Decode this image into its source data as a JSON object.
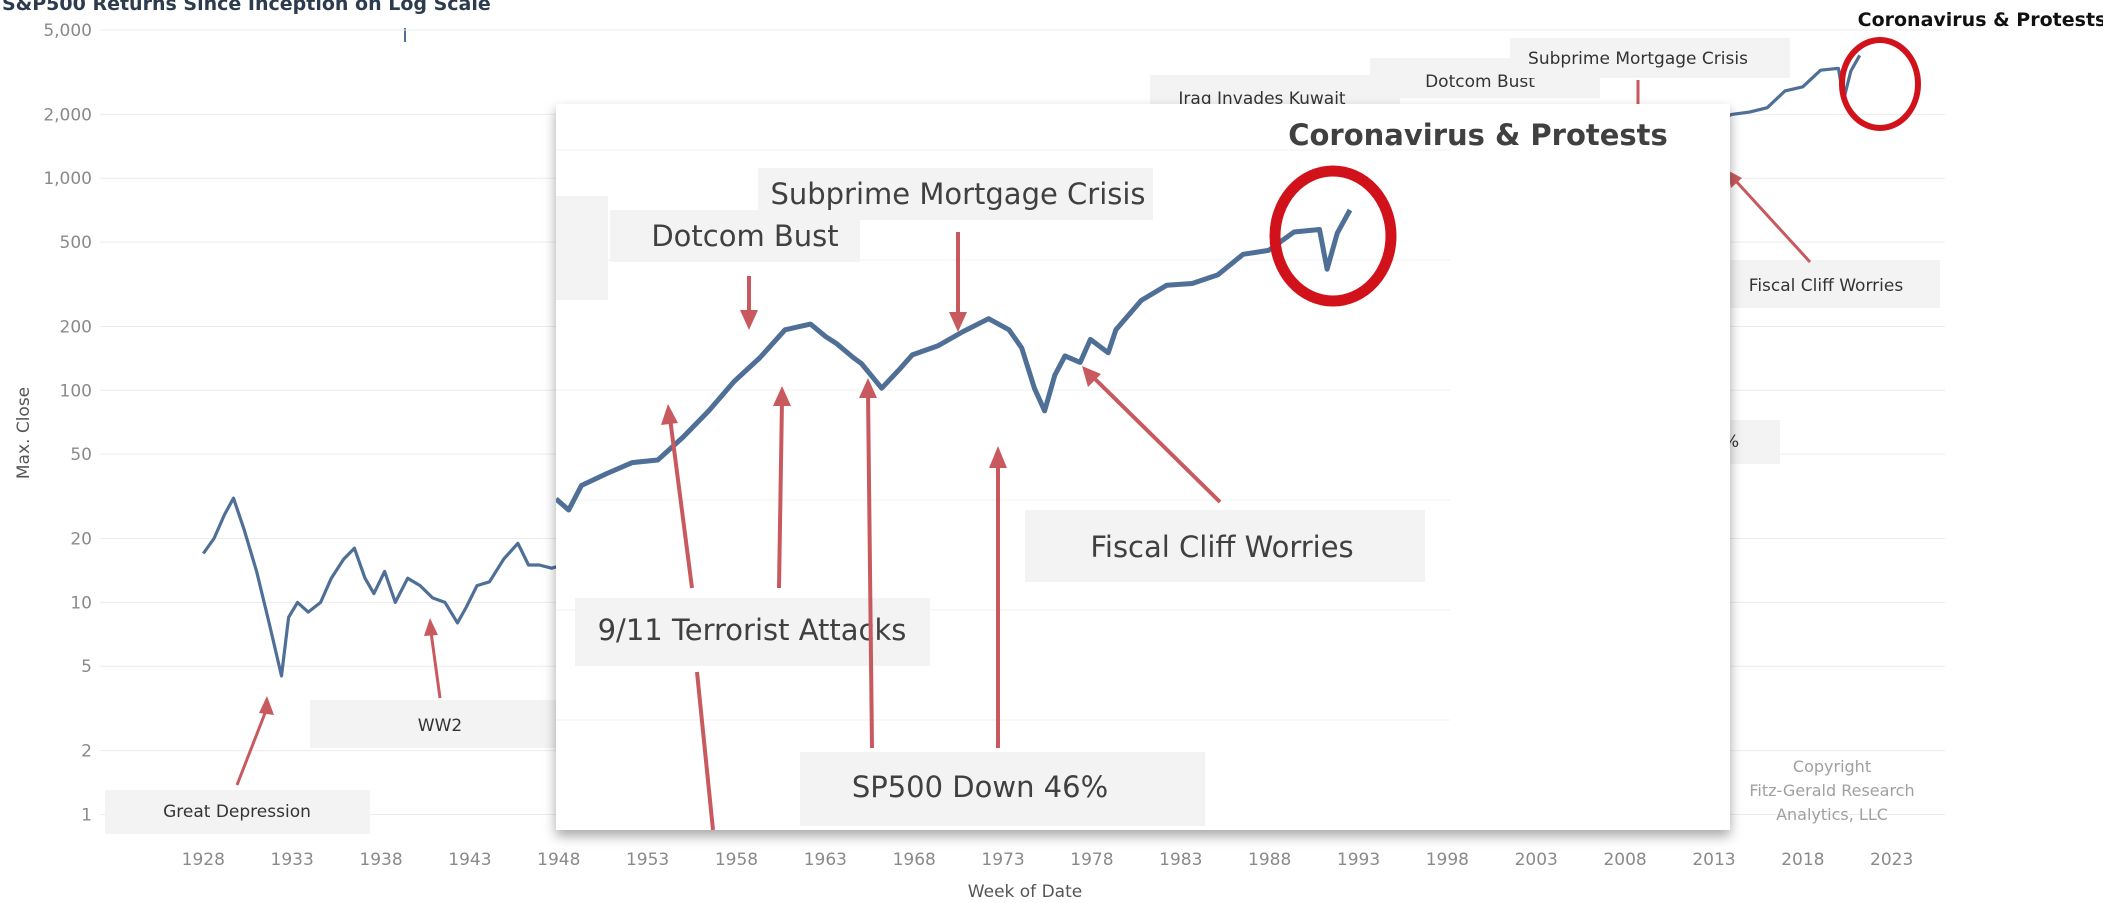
{
  "chart_data": [
    {
      "type": "line",
      "title": "S&P500 Returns Since Inception on Log Scale",
      "xlabel": "Week of Date",
      "ylabel": "Max. Close",
      "yscale": "log",
      "ylim": [
        0.8,
        5000
      ],
      "xlim": [
        1925,
        2026
      ],
      "y_ticks": [
        "5,000",
        "2,000",
        "1,000",
        "500",
        "200",
        "100",
        "50",
        "20",
        "10",
        "5",
        "2",
        "1"
      ],
      "y_tick_values": [
        5000,
        2000,
        1000,
        500,
        200,
        100,
        50,
        20,
        10,
        5,
        2,
        1
      ],
      "x_ticks": [
        "1928",
        "1933",
        "1938",
        "1943",
        "1948",
        "1953",
        "1958",
        "1963",
        "1968",
        "1973",
        "1978",
        "1983",
        "1988",
        "1993",
        "1998",
        "2003",
        "2008",
        "2013",
        "2018",
        "2023"
      ],
      "x_tick_values": [
        1928,
        1933,
        1938,
        1943,
        1948,
        1953,
        1958,
        1963,
        1968,
        1973,
        1978,
        1983,
        1988,
        1993,
        1998,
        2003,
        2008,
        2013,
        2018,
        2023
      ],
      "grid": true,
      "series": [
        {
          "color": "#4f6f96",
          "x": [
            1928.0,
            1928.6,
            1929.2,
            1929.7,
            1930.3,
            1931.0,
            1931.7,
            1932.4,
            1932.8,
            1933.3,
            1933.9,
            1934.6,
            1935.2,
            1935.9,
            1936.5,
            1937.1,
            1937.6,
            1938.2,
            1938.8,
            1939.5,
            1940.2,
            1940.9,
            1941.6,
            1942.3,
            1942.8,
            1943.4,
            1944.1,
            1944.9,
            1945.7,
            1946.3,
            1946.9,
            1947.6,
            1948.2,
            1949.0,
            1950.0,
            1951.0,
            1952.0,
            1953.0,
            1954.0,
            1955.0,
            1956.0,
            1957.0,
            1958.0,
            1959.0,
            1960.0,
            1961.0,
            1962.0,
            1963.0,
            1964.0,
            1965.0,
            1966.0,
            1967.0,
            1968.0,
            1969.0,
            1970.0,
            1971.0,
            1972.0,
            1973.0,
            1974.0,
            1975.0,
            1976.0,
            1977.0,
            1978.0,
            1979.0,
            1980.0,
            1981.0,
            1982.0,
            1983.0,
            1984.0,
            1985.0,
            1986.0,
            1987.0,
            1988.0,
            1989.0,
            1990.0,
            1991.0,
            1992.0,
            1993.0,
            1994.0,
            1995.0,
            1996.0,
            1997.0,
            1998.0,
            1999.0,
            2000.0,
            2001.0,
            2002.0,
            2003.0,
            2004.0,
            2005.0,
            2006.0,
            2007.0,
            2008.0,
            2009.0,
            2010.0,
            2011.0,
            2012.0,
            2013.0,
            2014.0,
            2015.0,
            2016.0,
            2017.0,
            2018.0,
            2019.0,
            2020.0,
            2020.3,
            2020.7,
            2021.2
          ],
          "values": [
            17,
            20,
            26,
            31,
            22,
            14,
            8,
            4.5,
            8.5,
            10,
            9,
            10,
            13,
            16,
            18,
            13,
            11,
            14,
            10,
            13,
            12,
            10.5,
            10,
            8,
            9.5,
            12,
            12.5,
            16,
            19,
            15,
            15,
            14.5,
            15,
            15.5,
            17,
            22,
            24,
            25,
            30,
            40,
            45,
            42,
            50,
            58,
            56,
            68,
            60,
            72,
            84,
            90,
            85,
            92,
            103,
            100,
            85,
            98,
            115,
            100,
            70,
            90,
            102,
            95,
            97,
            105,
            125,
            120,
            130,
            160,
            165,
            190,
            240,
            280,
            270,
            330,
            330,
            380,
            415,
            460,
            460,
            560,
            700,
            900,
            1100,
            1400,
            1430,
            1150,
            880,
            1050,
            1150,
            1220,
            1370,
            1520,
            920,
            900,
            1180,
            1280,
            1420,
            1800,
            2000,
            2050,
            2150,
            2580,
            2700,
            3230,
            3300,
            2350,
            3200,
            3800
          ]
        }
      ],
      "annotations": [
        "Great Depression",
        "WW2",
        "Iraq Invades Kuwait",
        "Dotcom Bust",
        "Subprime Mortgage Crisis",
        "Coronavirus & Protests",
        "Fiscal Cliff Worries",
        "Copyright",
        "Fitz-Gerald Research",
        "Analytics, LLC"
      ]
    },
    {
      "type": "line",
      "title": "",
      "annotations": [
        "Coronavirus & Protests",
        "Subprime Mortgage Crisis",
        "Dotcom Bust",
        "Fiscal Cliff Worries",
        "9/11 Terrorist Attacks",
        "SP500 Down 46%"
      ],
      "series": [
        {
          "color": "#4f6f96",
          "x": [
            1990.0,
            1990.5,
            1991.0,
            1992.0,
            1993.0,
            1994.0,
            1995.0,
            1996.0,
            1997.0,
            1998.0,
            1999.0,
            2000.0,
            2000.6,
            2001.0,
            2001.7,
            2002.0,
            2002.8,
            2003.5,
            2004.0,
            2005.0,
            2006.0,
            2007.0,
            2007.8,
            2008.3,
            2008.8,
            2009.2,
            2009.6,
            2010.0,
            2010.6,
            2011.0,
            2011.7,
            2012.0,
            2013.0,
            2014.0,
            2015.0,
            2016.0,
            2017.0,
            2018.0,
            2019.0,
            2020.0,
            2020.3,
            2020.7,
            2021.2
          ],
          "values": [
            330,
            300,
            370,
            410,
            450,
            460,
            560,
            700,
            900,
            1100,
            1400,
            1470,
            1320,
            1250,
            1100,
            1050,
            850,
            1000,
            1130,
            1220,
            1380,
            1540,
            1400,
            1200,
            850,
            700,
            950,
            1120,
            1060,
            1290,
            1150,
            1400,
            1800,
            2050,
            2080,
            2240,
            2670,
            2760,
            3230,
            3300,
            2350,
            3200,
            3900
          ]
        }
      ]
    }
  ],
  "colors": {
    "line": "#4f6f96",
    "arrow": "#c85a5f",
    "highlight_circle": "#d2121b",
    "grid": "#ececec"
  }
}
